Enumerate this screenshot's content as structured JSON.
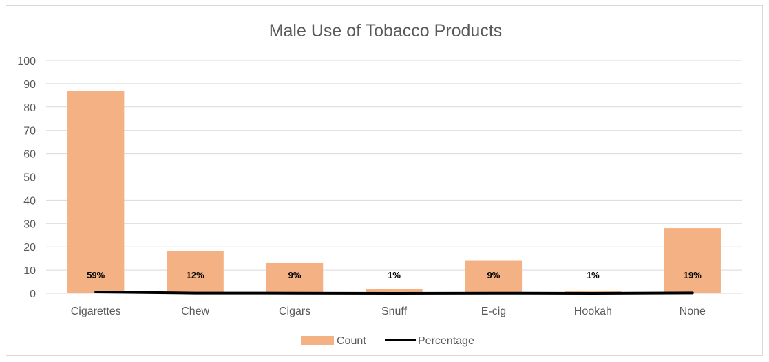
{
  "chart_data": {
    "type": "bar",
    "title": "Male Use of Tobacco Products",
    "categories": [
      "Cigarettes",
      "Chew",
      "Cigars",
      "Snuff",
      "E-cig",
      "Hookah",
      "None"
    ],
    "series": [
      {
        "name": "Count",
        "type": "bar",
        "values": [
          87,
          18,
          13,
          2,
          14,
          1,
          28
        ],
        "color": "#f4b183"
      },
      {
        "name": "Percentage",
        "type": "line",
        "values": [
          0.59,
          0.12,
          0.09,
          0.01,
          0.09,
          0.01,
          0.19
        ],
        "color": "#000000"
      }
    ],
    "data_labels": [
      "59%",
      "12%",
      "9%",
      "1%",
      "9%",
      "1%",
      "19%"
    ],
    "ylim": [
      0,
      100
    ],
    "yticks": [
      0,
      10,
      20,
      30,
      40,
      50,
      60,
      70,
      80,
      90,
      100
    ],
    "grid": true,
    "legend_position": "bottom",
    "xlabel": "",
    "ylabel": ""
  }
}
